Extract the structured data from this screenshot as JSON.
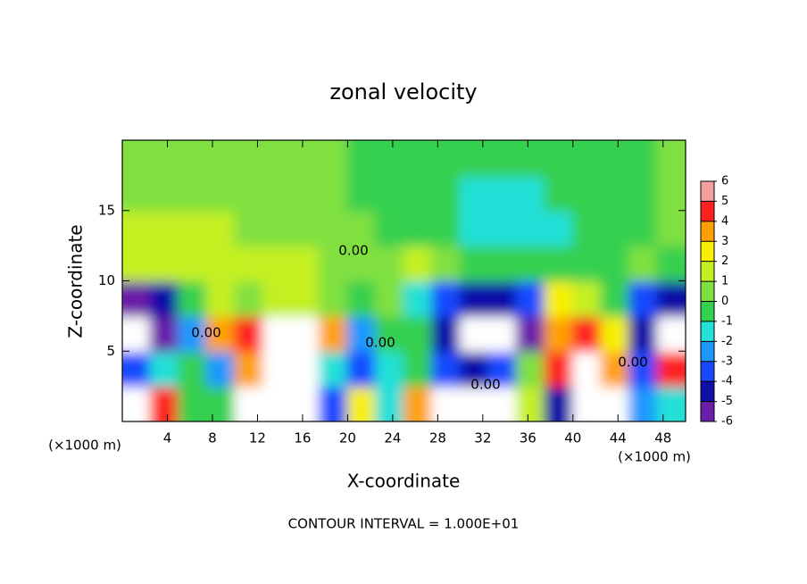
{
  "chart_data": {
    "type": "heatmap",
    "title": "zonal velocity",
    "x_label": "X-coordinate",
    "y_label": "Z-coordinate",
    "x_unit": "(×1000 m)",
    "note": "CONTOUR INTERVAL = 1.000E+01",
    "contour_labels": [
      "0.00",
      "0.00",
      "0.00",
      "0.00",
      "0.00"
    ],
    "xlim": [
      0,
      50
    ],
    "ylim": [
      0,
      20
    ],
    "xticks": [
      4,
      8,
      12,
      16,
      20,
      24,
      28,
      32,
      36,
      40,
      44,
      48
    ],
    "yticks": [
      5,
      10,
      15
    ],
    "x": [
      1.25,
      3.75,
      6.25,
      8.75,
      11.25,
      13.75,
      16.25,
      18.75,
      21.25,
      23.75,
      26.25,
      28.75,
      31.25,
      33.75,
      36.25,
      38.75,
      41.25,
      43.75,
      46.25,
      48.75
    ],
    "y": [
      1.25,
      3.75,
      6.25,
      8.75,
      11.25,
      13.75,
      16.25,
      18.75
    ],
    "z": [
      [
        7,
        5,
        0,
        0,
        -8,
        -8,
        -8,
        -3,
        3,
        -1,
        4,
        8,
        8,
        8,
        2,
        -4,
        -8,
        -8,
        -2,
        -1
      ],
      [
        -3,
        -1,
        0,
        -2,
        4,
        8,
        7,
        -1,
        -3,
        -1,
        0,
        -3,
        -4,
        -3,
        1,
        5,
        8,
        4,
        -3,
        5
      ],
      [
        -8,
        -6,
        -2,
        4,
        5,
        8,
        8,
        4,
        -2,
        0,
        0,
        -4,
        -8,
        -8,
        -5,
        4,
        5,
        3,
        -4,
        -8
      ],
      [
        -5,
        -4,
        0,
        2,
        1,
        2,
        2,
        1,
        0,
        1,
        -1,
        -3,
        -4,
        -4,
        -3,
        3,
        2,
        0,
        -3,
        -4
      ],
      [
        2,
        2,
        2,
        2,
        2,
        1.5,
        1.5,
        1,
        1,
        1,
        1.5,
        0.5,
        0,
        0,
        0,
        0,
        0,
        0,
        0.5,
        -0.5
      ],
      [
        1.5,
        1.5,
        1.5,
        1.5,
        1,
        1,
        1,
        0.5,
        0.5,
        0,
        -0.5,
        -0.5,
        -1,
        -1,
        -1.5,
        -1,
        -0.5,
        -0.5,
        0,
        0.5
      ],
      [
        1,
        1,
        1,
        0.5,
        0.5,
        0.5,
        0.5,
        0.5,
        0,
        -0.5,
        -0.5,
        -0.5,
        -1,
        -1,
        -1,
        -0.5,
        -0.5,
        -0.5,
        0,
        0.5
      ],
      [
        0.5,
        0.5,
        0.5,
        0.5,
        0.5,
        0.5,
        0.5,
        0.5,
        0,
        -0.5,
        -0.5,
        -0.5,
        -0.5,
        -0.5,
        -0.5,
        -0.5,
        0,
        0,
        0,
        0.5
      ]
    ],
    "colorbar": {
      "levels": [
        -6,
        -5,
        -4,
        -3,
        -2,
        -1,
        0,
        1,
        2,
        3,
        4,
        5,
        6
      ],
      "colors": [
        "#6a1fa8",
        "#1010a8",
        "#1848ff",
        "#1e98ff",
        "#24e0d8",
        "#34d050",
        "#80e040",
        "#c4f020",
        "#f8f000",
        "#ffa000",
        "#ff2020",
        "#f4a0a0"
      ],
      "out_of_range_color": "#ffffff"
    }
  }
}
